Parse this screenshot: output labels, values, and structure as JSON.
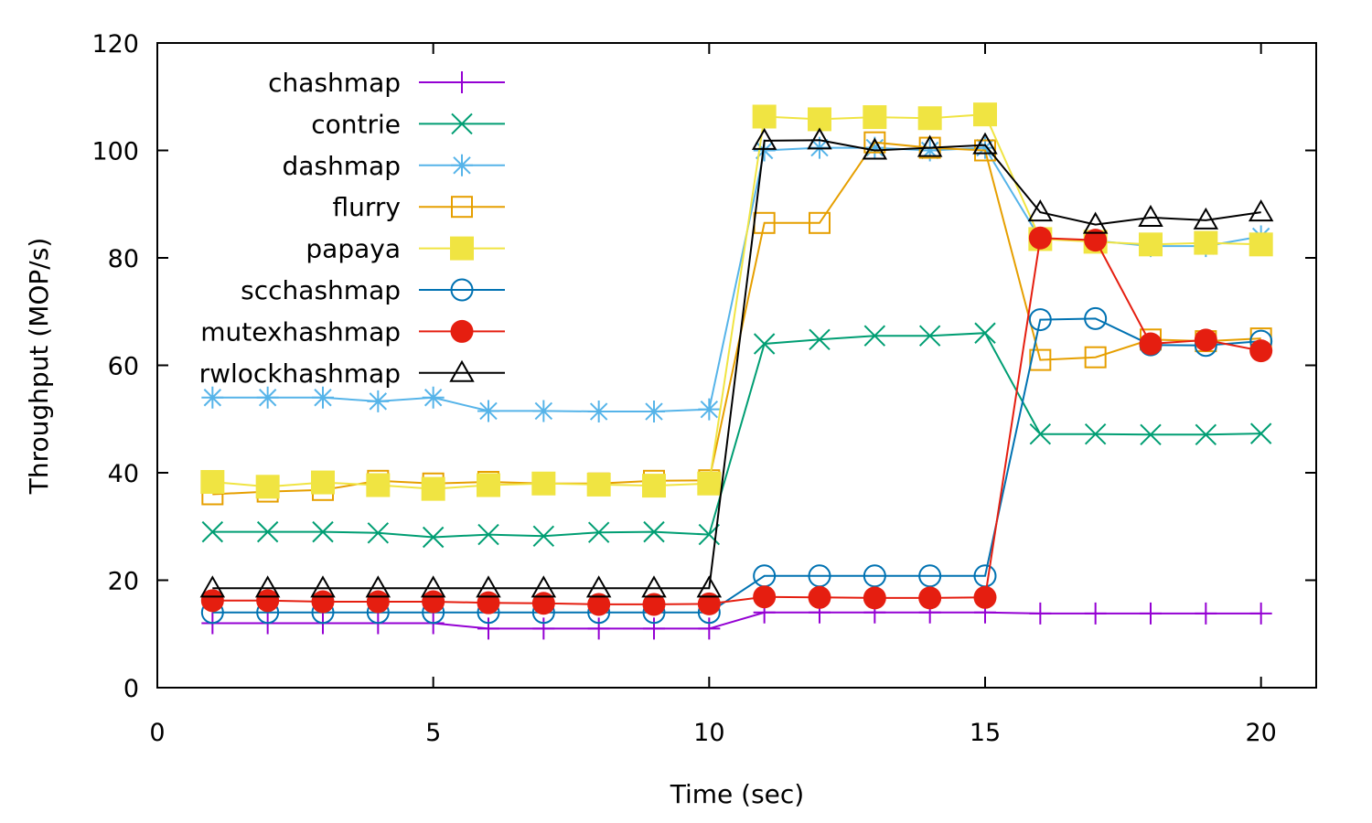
{
  "chart_data": {
    "type": "line",
    "title": "",
    "xlabel": "Time (sec)",
    "ylabel": "Throughput (MOP/s)",
    "xlim": [
      0,
      21
    ],
    "ylim": [
      0,
      120
    ],
    "xticks": [
      0,
      5,
      10,
      15,
      20
    ],
    "yticks": [
      0,
      20,
      40,
      60,
      80,
      100,
      120
    ],
    "grid": false,
    "legend_position": "top-left",
    "x": [
      1,
      2,
      3,
      4,
      5,
      6,
      7,
      8,
      9,
      10,
      11,
      12,
      13,
      14,
      15,
      16,
      17,
      18,
      19,
      20
    ],
    "series": [
      {
        "name": "chashmap",
        "color": "#9400d3",
        "marker": "plus",
        "values": [
          12,
          12,
          12,
          12,
          12,
          11,
          11,
          11,
          11,
          11,
          14,
          14,
          14,
          14,
          14,
          13.8,
          13.8,
          13.8,
          13.8,
          13.8
        ]
      },
      {
        "name": "contrie",
        "color": "#009e73",
        "marker": "cross",
        "values": [
          29,
          29,
          29,
          28.8,
          28,
          28.5,
          28.2,
          28.9,
          29,
          28.5,
          64,
          64.8,
          65.5,
          65.5,
          66,
          47.2,
          47.2,
          47.1,
          47.1,
          47.3
        ]
      },
      {
        "name": "dashmap",
        "color": "#56b4e9",
        "marker": "asterisk",
        "values": [
          54,
          54,
          54,
          53.3,
          54,
          51.5,
          51.5,
          51.4,
          51.4,
          51.8,
          100,
          100.5,
          100.5,
          100,
          100.5,
          83.5,
          83.2,
          82.2,
          82.2,
          84
        ]
      },
      {
        "name": "flurry",
        "color": "#e69f00",
        "marker": "square-open",
        "values": [
          36,
          36.5,
          36.8,
          38.5,
          38,
          38.3,
          38,
          38,
          38.5,
          38.6,
          86.5,
          86.5,
          101.5,
          100.5,
          100,
          61,
          61.5,
          64.8,
          64.5,
          65
        ]
      },
      {
        "name": "papaya",
        "color": "#f0e442",
        "marker": "square-filled",
        "values": [
          38.3,
          37.4,
          38.2,
          37.7,
          37,
          37.7,
          38,
          37.8,
          37.6,
          38,
          106.3,
          105.8,
          106.2,
          106,
          106.7,
          83.5,
          83,
          82.5,
          82.8,
          82.5
        ]
      },
      {
        "name": "scchashmap",
        "color": "#0072b2",
        "marker": "circle-open",
        "values": [
          14,
          14,
          14,
          14,
          14,
          14,
          14,
          14,
          14,
          14,
          20.8,
          20.8,
          20.8,
          20.8,
          20.8,
          68.5,
          68.7,
          63.8,
          63.7,
          64.5
        ]
      },
      {
        "name": "mutexhashmap",
        "color": "#e51e10",
        "marker": "circle-filled",
        "values": [
          16.2,
          16.2,
          16,
          16,
          16,
          15.8,
          15.7,
          15.5,
          15.5,
          15.6,
          16.9,
          16.8,
          16.7,
          16.7,
          16.8,
          83.7,
          83.3,
          64,
          64.7,
          62.7
        ]
      },
      {
        "name": "rwlockhashmap",
        "color": "#000000",
        "marker": "triangle-open",
        "values": [
          18.5,
          18.5,
          18.5,
          18.5,
          18.5,
          18.5,
          18.5,
          18.5,
          18.5,
          18.5,
          101.8,
          101.9,
          100,
          100.5,
          101,
          88.5,
          86.2,
          87.5,
          87,
          88.5
        ]
      }
    ]
  }
}
